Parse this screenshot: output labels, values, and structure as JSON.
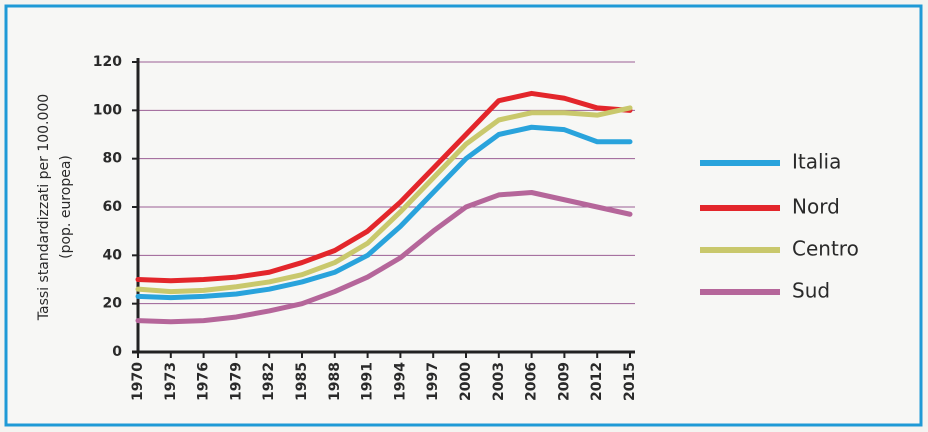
{
  "chart_data": {
    "type": "line",
    "y_label": [
      "Tassi standardizzati per 100.000",
      "(pop. europea)"
    ],
    "x": [
      1970,
      1973,
      1976,
      1979,
      1982,
      1985,
      1988,
      1991,
      1994,
      1997,
      2000,
      2003,
      2006,
      2009,
      2012,
      2015
    ],
    "xlim": [
      1970,
      2015
    ],
    "xticks": [
      1970,
      1973,
      1976,
      1979,
      1982,
      1985,
      1988,
      1991,
      1994,
      1997,
      2000,
      2003,
      2006,
      2009,
      2012,
      2015
    ],
    "ylim": [
      0,
      120
    ],
    "yticks": [
      0,
      20,
      40,
      60,
      80,
      100,
      120
    ],
    "grid": true,
    "legend": "right",
    "series": [
      {
        "name": "Italia",
        "color": "#29a3dc",
        "values": [
          23,
          22.5,
          23,
          24,
          26,
          29,
          33,
          40,
          52,
          66,
          80,
          90,
          93,
          92,
          87,
          87
        ]
      },
      {
        "name": "Nord",
        "color": "#e3262b",
        "values": [
          30,
          29.5,
          30,
          31,
          33,
          37,
          42,
          50,
          62,
          76,
          90,
          104,
          107,
          105,
          101,
          100
        ]
      },
      {
        "name": "Centro",
        "color": "#c9c86c",
        "values": [
          26,
          25,
          25.5,
          27,
          29,
          32,
          37,
          45,
          58,
          72,
          86,
          96,
          99,
          99,
          98,
          101
        ]
      },
      {
        "name": "Sud",
        "color": "#b5669a",
        "values": [
          13,
          12.5,
          13,
          14.5,
          17,
          20,
          25,
          31,
          39,
          50,
          60,
          65,
          66,
          63,
          60,
          57
        ]
      }
    ]
  }
}
